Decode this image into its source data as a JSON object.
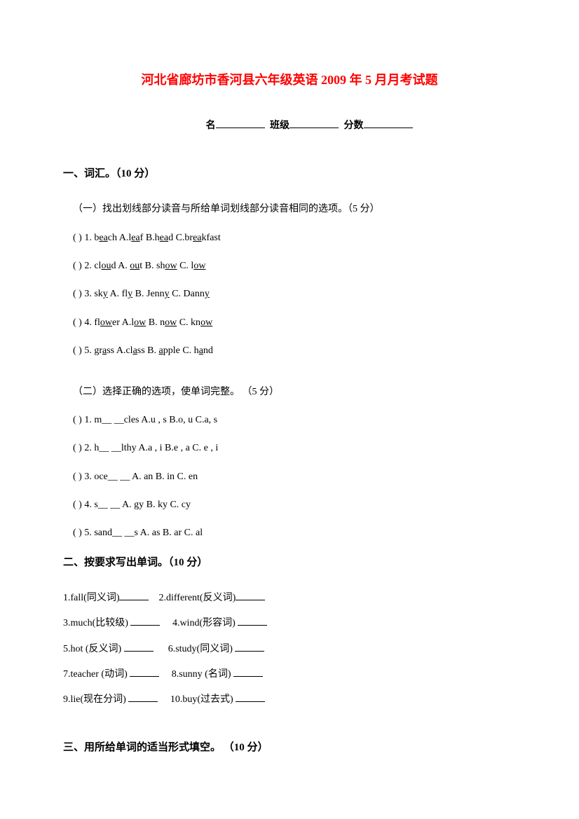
{
  "title": "河北省廊坊市香河县六年级英语 2009 年 5 月月考试题",
  "info": {
    "name_label": "名",
    "class_label": "班级",
    "score_label": "分数"
  },
  "section1": {
    "heading": "一、词汇。（10 分）",
    "part1_intro": "（一）找出划线部分读音与所给单词划线部分读音相同的选项。（5 分）",
    "q1": {
      "prefix": "(    ) 1. b",
      "ul1": "ea",
      "mid1": "ch    A.l",
      "ul2": "ea",
      "mid2": "f    B.h",
      "ul3": "ea",
      "mid3": "d C.br",
      "ul4": "ea",
      "suffix": "kfast"
    },
    "q2": {
      "prefix": "(    ) 2. cl",
      "ul1": "ou",
      "mid1": "d      A. ",
      "ul2": "ou",
      "mid2": "t    B. sh",
      "ul3": "ow",
      "mid3": "    C. l",
      "ul4": "ow",
      "suffix": ""
    },
    "q3": {
      "prefix": "(    ) 3. sk",
      "ul1": "y",
      "mid1": "      A. fl",
      "ul2": "y",
      "mid2": "    B. Jenn",
      "ul3": "y",
      "mid3": "    C. Dann",
      "ul4": "y",
      "suffix": ""
    },
    "q4": {
      "prefix": "(    ) 4. fl",
      "ul1": "ow",
      "mid1": "er     A.l",
      "ul2": "ow",
      "mid2": "    B. n",
      "ul3": "ow",
      "mid3": "    C. kn",
      "ul4": "ow",
      "suffix": ""
    },
    "q5": {
      "prefix": "(    ) 5. gr",
      "ul1": "a",
      "mid1": "ss     A.cl",
      "ul2": "a",
      "mid2": "ss    B. ",
      "ul3": "a",
      "mid3": "pple    C. h",
      "ul4": "a",
      "suffix": "nd"
    },
    "part2_intro": "（二）选择正确的选项，使单词完整。 （5 分）",
    "p2q1": "(    ) 1. m__  __cles    A.u , s    B.o, u    C.a, s",
    "p2q2": "(    ) 2. h__  __lthy    A.a , i    B.e , a    C. e , i",
    "p2q3": "(    ) 3. oce__  __       A. an     B. in      C. en",
    "p2q4": "(    ) 4. s__  __          A. gy      B. ky      C. cy",
    "p2q5": "(    ) 5. sand__  __s    A. as       B. ar       C. al"
  },
  "section2": {
    "heading": "二、按要求写出单词。（10 分）",
    "row1a": "1.fall(同义词)",
    "row1b": "2.different(反义词)",
    "row2a": "3.much(比较级) ",
    "row2b": "4.wind(形容词) ",
    "row3a": "5.hot (反义词) ",
    "row3b": "6.study(同义词) ",
    "row4a": "7.teacher (动词) ",
    "row4b": "8.sunny (名词) ",
    "row5a": "9.lie(现在分词) ",
    "row5b": "10.buy(过去式) "
  },
  "section3": {
    "heading": "三、用所给单词的适当形式填空。 （10 分）"
  }
}
